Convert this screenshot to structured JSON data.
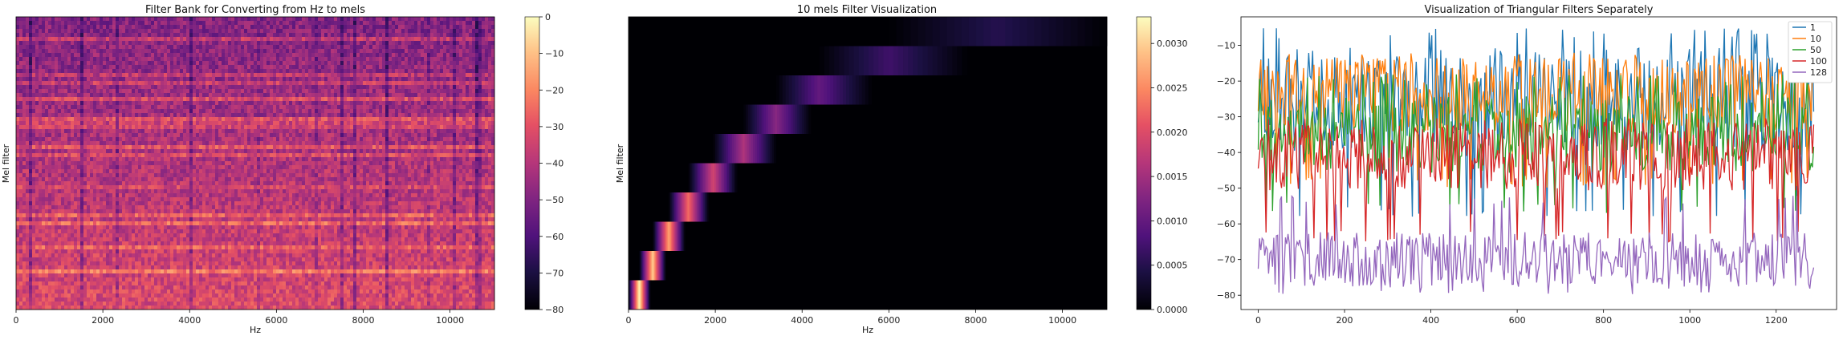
{
  "chart_data": [
    {
      "type": "heatmap",
      "title": "Filter Bank for Converting from Hz to mels",
      "xlabel": "Hz",
      "ylabel": "Mel filter",
      "xlim": [
        0,
        11025
      ],
      "x_ticks": [
        0,
        2000,
        4000,
        6000,
        8000,
        10000
      ],
      "colorbar": {
        "range": [
          -80,
          0
        ],
        "ticks": [
          0,
          -10,
          -20,
          -30,
          -40,
          -50,
          -60,
          -70,
          -80
        ],
        "colormap": "magma"
      }
    },
    {
      "type": "heatmap",
      "title": "10 mels Filter Visualization",
      "xlabel": "Hz",
      "ylabel": "Mel filter",
      "xlim": [
        0,
        11025
      ],
      "x_ticks": [
        0,
        2000,
        4000,
        6000,
        8000,
        10000
      ],
      "filters": [
        {
          "index": 0,
          "start": 0,
          "peak": 250,
          "end": 500
        },
        {
          "index": 1,
          "start": 250,
          "peak": 560,
          "end": 860
        },
        {
          "index": 2,
          "start": 560,
          "peak": 930,
          "end": 1300
        },
        {
          "index": 3,
          "start": 930,
          "peak": 1380,
          "end": 1850
        },
        {
          "index": 4,
          "start": 1380,
          "peak": 1950,
          "end": 2500
        },
        {
          "index": 5,
          "start": 1950,
          "peak": 2650,
          "end": 3400
        },
        {
          "index": 6,
          "start": 2650,
          "peak": 3400,
          "end": 4200
        },
        {
          "index": 7,
          "start": 3400,
          "peak": 4400,
          "end": 5600
        },
        {
          "index": 8,
          "start": 4400,
          "peak": 6000,
          "end": 7800
        },
        {
          "index": 9,
          "start": 6000,
          "peak": 8500,
          "end": 11025
        }
      ],
      "filter_peak_values": [
        0.0033,
        0.003,
        0.0027,
        0.0023,
        0.0019,
        0.0016,
        0.0013,
        0.001,
        0.0007,
        0.0005
      ],
      "colorbar": {
        "range": [
          0,
          0.0033
        ],
        "ticks": [
          "0.0000",
          "0.0005",
          "0.0010",
          "0.0015",
          "0.0020",
          "0.0025",
          "0.0030"
        ],
        "colormap": "magma"
      }
    },
    {
      "type": "line",
      "title": "Visualization of Triangular Filters Separately",
      "xlim": [
        -40,
        1340
      ],
      "ylim": [
        -84,
        -2
      ],
      "x_ticks": [
        0,
        200,
        400,
        600,
        800,
        1000,
        1200
      ],
      "y_ticks": [
        -10,
        -20,
        -30,
        -40,
        -50,
        -60,
        -70,
        -80
      ],
      "n_points": 1290,
      "legend_position": "top-right",
      "series": [
        {
          "name": "1",
          "color": "#1f77b4",
          "mean": -25,
          "min": -58,
          "max": -5
        },
        {
          "name": "10",
          "color": "#ff7f0e",
          "mean": -24,
          "min": -50,
          "max": -12
        },
        {
          "name": "50",
          "color": "#2ca02c",
          "mean": -35,
          "min": -57,
          "max": -18
        },
        {
          "name": "100",
          "color": "#d62728",
          "mean": -41,
          "min": -65,
          "max": -30
        },
        {
          "name": "128",
          "color": "#9467bd",
          "mean": -70,
          "min": -80,
          "max": -52
        }
      ]
    }
  ]
}
